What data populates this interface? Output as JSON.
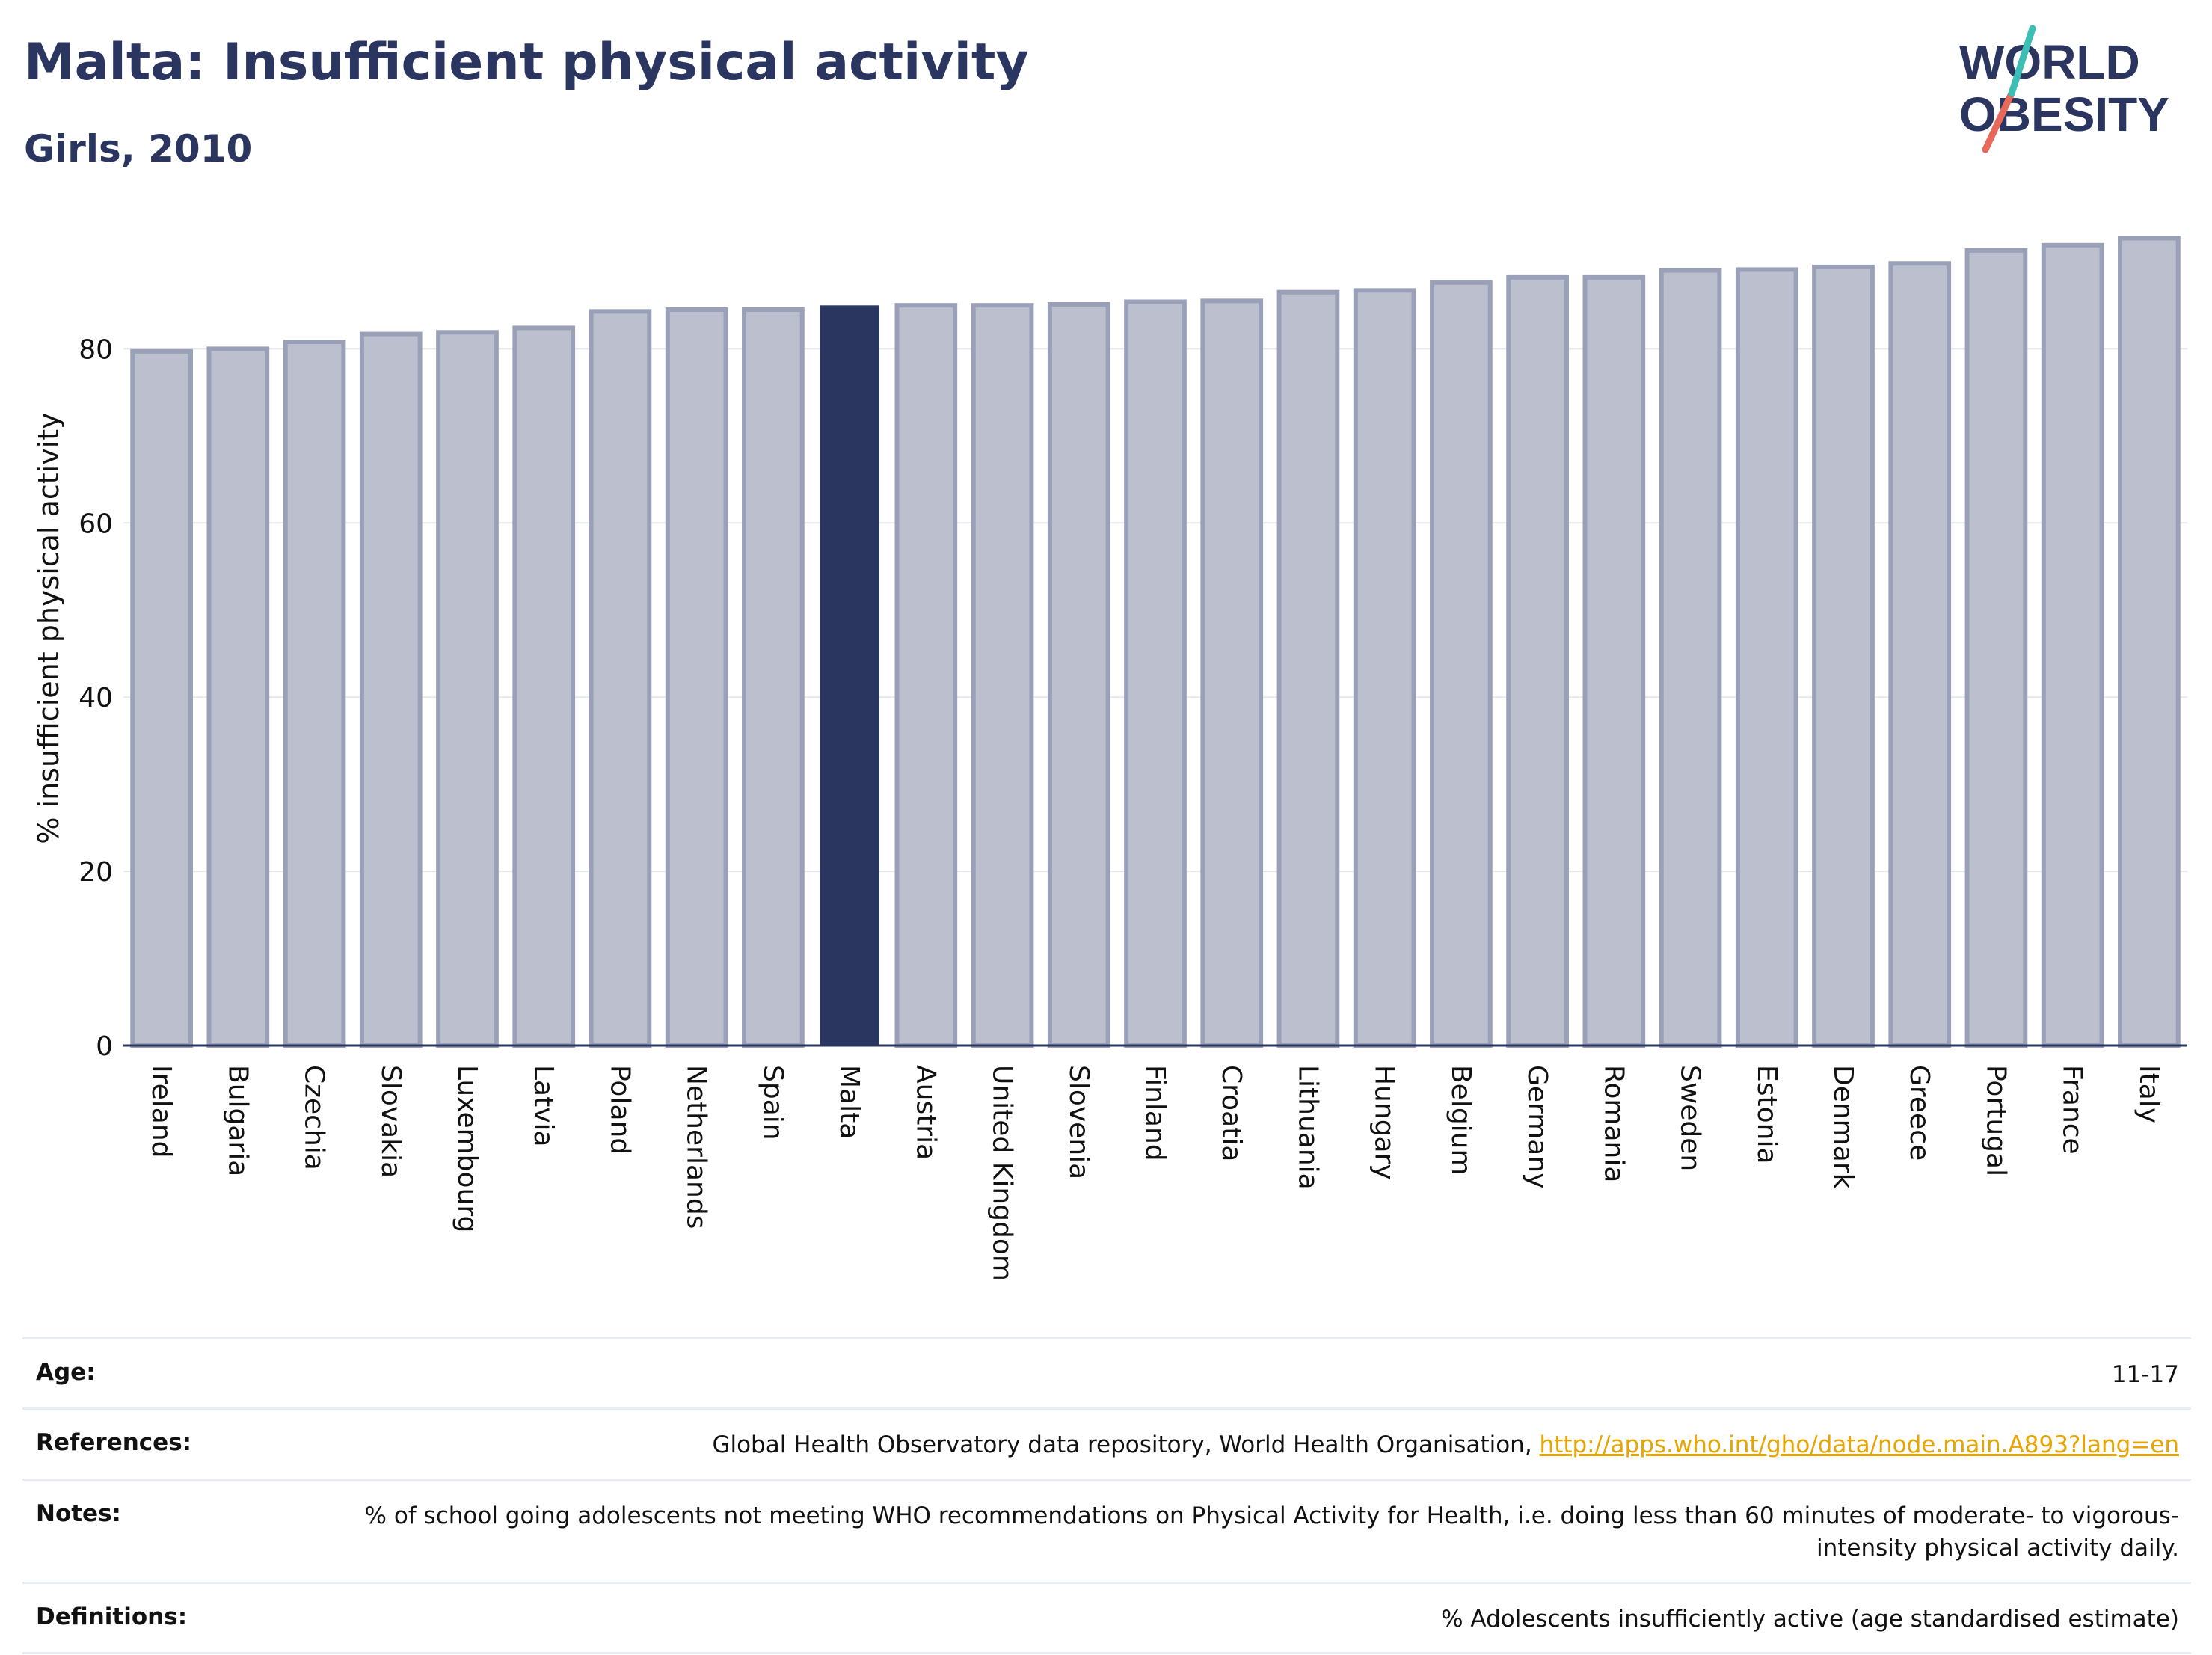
{
  "header": {
    "title": "Malta: Insufficient physical activity",
    "subtitle": "Girls, 2010",
    "logo_text": [
      "WORLD",
      "OBESITY"
    ]
  },
  "colors": {
    "bar": "#bcc0ce",
    "bar_border": "#9aa0b8",
    "highlight": "#2a3560",
    "accent_teal": "#3bbfb5",
    "accent_coral": "#e8695b"
  },
  "chart_data": {
    "type": "bar",
    "title": "Malta: Insufficient physical activity",
    "subtitle": "Girls, 2010",
    "ylabel": "% insufficient physical activity",
    "xlabel": "",
    "ylim": [
      0,
      93
    ],
    "yticks": [
      0,
      20,
      40,
      60,
      80
    ],
    "grid": true,
    "highlight": "Malta",
    "categories": [
      "Ireland",
      "Bulgaria",
      "Czechia",
      "Slovakia",
      "Luxembourg",
      "Latvia",
      "Poland",
      "Netherlands",
      "Spain",
      "Malta",
      "Austria",
      "United Kingdom",
      "Slovenia",
      "Finland",
      "Croatia",
      "Lithuania",
      "Hungary",
      "Belgium",
      "Germany",
      "Romania",
      "Sweden",
      "Estonia",
      "Denmark",
      "Greece",
      "Portugal",
      "France",
      "Italy"
    ],
    "values": [
      79.7,
      80.0,
      80.8,
      81.7,
      81.9,
      82.4,
      84.3,
      84.5,
      84.5,
      84.9,
      85.0,
      85.0,
      85.1,
      85.4,
      85.5,
      86.5,
      86.7,
      87.6,
      88.2,
      88.2,
      89.0,
      89.1,
      89.4,
      89.8,
      91.3,
      91.9,
      92.7
    ]
  },
  "footer": {
    "rows": [
      {
        "label": "Age:",
        "value": "11-17"
      },
      {
        "label": "References:",
        "value": "Global Health Observatory data repository, World Health Organisation, ",
        "link": "http://apps.who.int/gho/data/node.main.A893?lang=en"
      },
      {
        "label": "Notes:",
        "value": "% of school going adolescents not meeting WHO recommendations on Physical Activity for Health, i.e. doing less than 60 minutes of moderate- to vigorous-intensity physical activity daily."
      },
      {
        "label": "Definitions:",
        "value": "% Adolescents insufficiently active (age standardised estimate)"
      }
    ]
  }
}
